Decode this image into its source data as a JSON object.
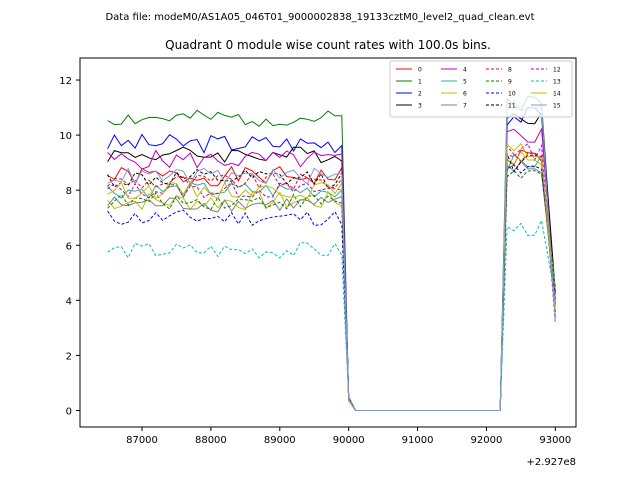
{
  "figure": {
    "suptitle": "Data file: modeM0/AS1A05_046T01_9000002838_19133cztM0_level2_quad_clean.evt"
  },
  "chart_data": {
    "type": "line",
    "title": "Quadrant 0 module wise count rates with 100.0s bins.",
    "xlabel": "",
    "ylabel": "",
    "offset_label": "+2.927e8",
    "xlim": [
      86100,
      93300
    ],
    "ylim": [
      -0.6,
      12.8
    ],
    "grid": false,
    "legend_position": "upper-right",
    "legend_columns": 4,
    "x_ticks": [
      {
        "value": 87000,
        "label": "87000"
      },
      {
        "value": 88000,
        "label": "88000"
      },
      {
        "value": 89000,
        "label": "89000"
      },
      {
        "value": 90000,
        "label": "90000"
      },
      {
        "value": 91000,
        "label": "91000"
      },
      {
        "value": 92000,
        "label": "92000"
      },
      {
        "value": 93000,
        "label": "93000"
      }
    ],
    "y_ticks": [
      {
        "value": 0,
        "label": "0"
      },
      {
        "value": 2,
        "label": "2"
      },
      {
        "value": 4,
        "label": "4"
      },
      {
        "value": 6,
        "label": "6"
      },
      {
        "value": 8,
        "label": "8"
      },
      {
        "value": 10,
        "label": "10"
      },
      {
        "value": 12,
        "label": "12"
      }
    ],
    "x": {
      "segment1_start": 86500,
      "segment1_end": 89900,
      "segment2_start": 92300,
      "segment2_end": 92900,
      "step": 100,
      "gap_points": [
        90000,
        90100,
        90200,
        92200
      ]
    },
    "series": [
      {
        "name": "0",
        "color": "#ff0000",
        "dash": "solid",
        "mean": 8.5,
        "amp": 0.35,
        "end_value": 9.2,
        "seed": 1
      },
      {
        "name": "1",
        "color": "#008000",
        "dash": "solid",
        "mean": 10.6,
        "amp": 0.3,
        "end_value": 11.2,
        "seed": 2
      },
      {
        "name": "2",
        "color": "#0000ff",
        "dash": "solid",
        "mean": 9.7,
        "amp": 0.35,
        "end_value": 10.7,
        "seed": 3
      },
      {
        "name": "3",
        "color": "#000000",
        "dash": "solid",
        "mean": 9.3,
        "amp": 0.3,
        "end_value": 10.7,
        "seed": 4
      },
      {
        "name": "4",
        "color": "#bf00bf",
        "dash": "solid",
        "mean": 9.1,
        "amp": 0.35,
        "end_value": 10.0,
        "seed": 5
      },
      {
        "name": "5",
        "color": "#2ab0a0",
        "dash": "solid",
        "mean": 8.0,
        "amp": 0.3,
        "end_value": 9.0,
        "seed": 6
      },
      {
        "name": "6",
        "color": "#bfbf00",
        "dash": "solid",
        "mean": 7.6,
        "amp": 0.35,
        "end_value": 9.2,
        "seed": 7
      },
      {
        "name": "7",
        "color": "#808080",
        "dash": "solid",
        "mean": 7.5,
        "amp": 0.3,
        "end_value": 8.8,
        "seed": 8
      },
      {
        "name": "8",
        "color": "#ff0000",
        "dash": "dashed",
        "mean": 8.3,
        "amp": 0.3,
        "end_value": 9.3,
        "seed": 9
      },
      {
        "name": "9",
        "color": "#008000",
        "dash": "dashed",
        "mean": 7.6,
        "amp": 0.3,
        "end_value": 8.6,
        "seed": 10
      },
      {
        "name": "10",
        "color": "#0000ff",
        "dash": "dashed",
        "mean": 7.0,
        "amp": 0.3,
        "end_value": 8.7,
        "seed": 11
      },
      {
        "name": "11",
        "color": "#000000",
        "dash": "dashed",
        "mean": 8.4,
        "amp": 0.35,
        "end_value": 9.0,
        "seed": 12
      },
      {
        "name": "12",
        "color": "#bf00bf",
        "dash": "dashed",
        "mean": 8.0,
        "amp": 0.3,
        "end_value": 9.4,
        "seed": 13
      },
      {
        "name": "13",
        "color": "#00bfbf",
        "dash": "dashed",
        "mean": 5.8,
        "amp": 0.3,
        "end_value": 6.6,
        "seed": 14
      },
      {
        "name": "14",
        "color": "#bfbf00",
        "dash": "solid",
        "mean": 8.0,
        "amp": 0.3,
        "end_value": 9.4,
        "seed": 15
      },
      {
        "name": "15",
        "color": "#7b9cdc",
        "dash": "solid",
        "mean": 8.5,
        "amp": 0.3,
        "end_value": 11.1,
        "seed": 16
      }
    ]
  }
}
